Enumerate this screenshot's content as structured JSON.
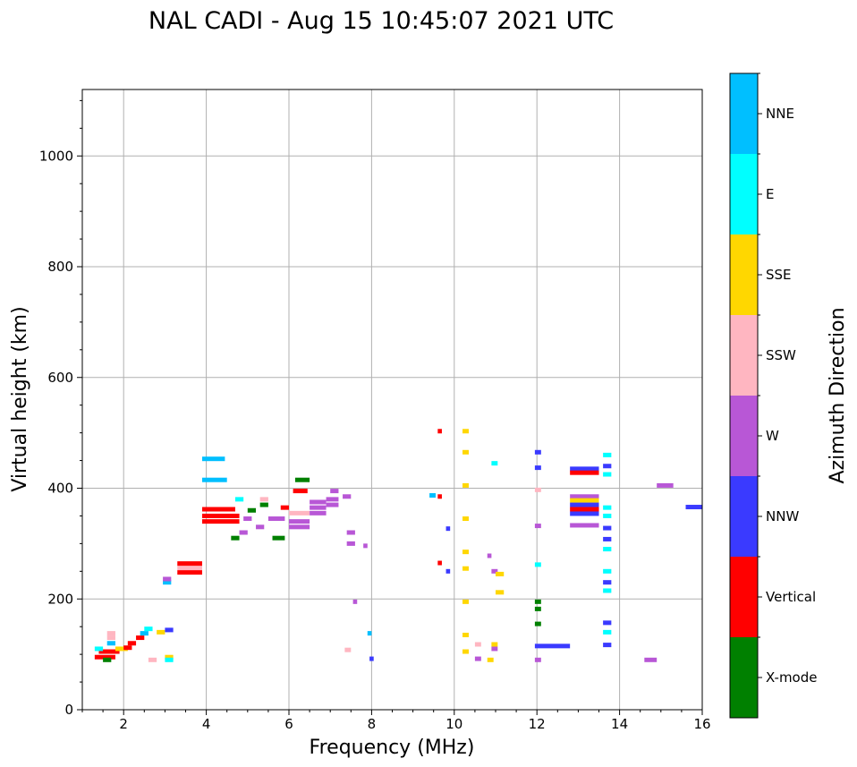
{
  "chart_data": {
    "type": "scatter",
    "title": "NAL CADI - Aug 15 10:45:07 2021 UTC",
    "xlabel": "Frequency (MHz)",
    "ylabel": "Virtual height (km)",
    "xlim": [
      1,
      16
    ],
    "ylim": [
      0,
      1120
    ],
    "xticks": [
      2,
      4,
      6,
      8,
      10,
      12,
      14,
      16
    ],
    "yticks": [
      0,
      200,
      400,
      600,
      800,
      1000
    ],
    "grid": true,
    "colorbar": {
      "label": "Azimuth Direction",
      "categories": [
        {
          "name": "X-mode",
          "color": "#008000"
        },
        {
          "name": "Vertical",
          "color": "#ff0000"
        },
        {
          "name": "NNW",
          "color": "#3a3aff"
        },
        {
          "name": "W",
          "color": "#b857d6"
        },
        {
          "name": "SSW",
          "color": "#ffb6c1"
        },
        {
          "name": "SSE",
          "color": "#ffd700"
        },
        {
          "name": "E",
          "color": "#00ffff"
        },
        {
          "name": "NNE",
          "color": "#00bfff"
        }
      ]
    },
    "segments": [
      {
        "x0": 1.3,
        "x1": 1.8,
        "y": 95,
        "c": "Vertical"
      },
      {
        "x0": 1.4,
        "x1": 1.9,
        "y": 105,
        "c": "Vertical"
      },
      {
        "x0": 1.5,
        "x1": 1.7,
        "y": 90,
        "c": "X-mode"
      },
      {
        "x0": 1.3,
        "x1": 1.5,
        "y": 110,
        "c": "E"
      },
      {
        "x0": 1.6,
        "x1": 1.8,
        "y": 120,
        "c": "NNE"
      },
      {
        "x0": 1.6,
        "x1": 1.8,
        "y": 130,
        "c": "SSW"
      },
      {
        "x0": 1.6,
        "x1": 1.8,
        "y": 138,
        "c": "SSW"
      },
      {
        "x0": 1.8,
        "x1": 2.1,
        "y": 110,
        "c": "SSE"
      },
      {
        "x0": 2.0,
        "x1": 2.2,
        "y": 112,
        "c": "Vertical"
      },
      {
        "x0": 2.1,
        "x1": 2.3,
        "y": 120,
        "c": "Vertical"
      },
      {
        "x0": 2.3,
        "x1": 2.5,
        "y": 130,
        "c": "Vertical"
      },
      {
        "x0": 2.4,
        "x1": 2.6,
        "y": 138,
        "c": "NNE"
      },
      {
        "x0": 2.5,
        "x1": 2.7,
        "y": 146,
        "c": "E"
      },
      {
        "x0": 2.6,
        "x1": 2.8,
        "y": 90,
        "c": "SSW"
      },
      {
        "x0": 2.8,
        "x1": 3.0,
        "y": 140,
        "c": "SSE"
      },
      {
        "x0": 3.0,
        "x1": 3.2,
        "y": 144,
        "c": "NNW"
      },
      {
        "x0": 3.0,
        "x1": 3.2,
        "y": 95,
        "c": "SSE"
      },
      {
        "x0": 3.0,
        "x1": 3.2,
        "y": 90,
        "c": "E"
      },
      {
        "x0": 2.95,
        "x1": 3.15,
        "y": 230,
        "c": "NNE"
      },
      {
        "x0": 2.95,
        "x1": 3.15,
        "y": 236,
        "c": "W"
      },
      {
        "x0": 3.3,
        "x1": 3.9,
        "y": 248,
        "c": "Vertical"
      },
      {
        "x0": 3.3,
        "x1": 3.9,
        "y": 256,
        "c": "SSW"
      },
      {
        "x0": 3.3,
        "x1": 3.9,
        "y": 264,
        "c": "Vertical"
      },
      {
        "x0": 3.9,
        "x1": 4.45,
        "y": 453,
        "c": "NNE"
      },
      {
        "x0": 3.9,
        "x1": 4.5,
        "y": 415,
        "c": "NNE"
      },
      {
        "x0": 3.9,
        "x1": 4.8,
        "y": 340,
        "c": "Vertical"
      },
      {
        "x0": 3.9,
        "x1": 4.8,
        "y": 350,
        "c": "Vertical"
      },
      {
        "x0": 3.9,
        "x1": 4.7,
        "y": 362,
        "c": "Vertical"
      },
      {
        "x0": 4.6,
        "x1": 4.8,
        "y": 310,
        "c": "X-mode"
      },
      {
        "x0": 4.7,
        "x1": 4.9,
        "y": 380,
        "c": "E"
      },
      {
        "x0": 4.8,
        "x1": 5.0,
        "y": 320,
        "c": "W"
      },
      {
        "x0": 4.9,
        "x1": 5.1,
        "y": 345,
        "c": "W"
      },
      {
        "x0": 5.0,
        "x1": 5.2,
        "y": 360,
        "c": "X-mode"
      },
      {
        "x0": 5.2,
        "x1": 5.4,
        "y": 330,
        "c": "W"
      },
      {
        "x0": 5.3,
        "x1": 5.5,
        "y": 370,
        "c": "X-mode"
      },
      {
        "x0": 5.3,
        "x1": 5.5,
        "y": 380,
        "c": "SSW"
      },
      {
        "x0": 5.5,
        "x1": 5.9,
        "y": 345,
        "c": "W"
      },
      {
        "x0": 5.6,
        "x1": 5.9,
        "y": 310,
        "c": "X-mode"
      },
      {
        "x0": 5.8,
        "x1": 6.0,
        "y": 365,
        "c": "Vertical"
      },
      {
        "x0": 6.0,
        "x1": 6.5,
        "y": 330,
        "c": "W"
      },
      {
        "x0": 6.0,
        "x1": 6.5,
        "y": 340,
        "c": "W"
      },
      {
        "x0": 6.0,
        "x1": 6.5,
        "y": 355,
        "c": "SSW"
      },
      {
        "x0": 6.1,
        "x1": 6.45,
        "y": 395,
        "c": "Vertical"
      },
      {
        "x0": 6.15,
        "x1": 6.5,
        "y": 415,
        "c": "X-mode"
      },
      {
        "x0": 6.5,
        "x1": 6.9,
        "y": 365,
        "c": "W"
      },
      {
        "x0": 6.5,
        "x1": 6.9,
        "y": 375,
        "c": "W"
      },
      {
        "x0": 6.5,
        "x1": 6.9,
        "y": 355,
        "c": "W"
      },
      {
        "x0": 6.9,
        "x1": 7.2,
        "y": 370,
        "c": "W"
      },
      {
        "x0": 6.9,
        "x1": 7.2,
        "y": 380,
        "c": "W"
      },
      {
        "x0": 7.0,
        "x1": 7.2,
        "y": 395,
        "c": "W"
      },
      {
        "x0": 7.3,
        "x1": 7.5,
        "y": 385,
        "c": "W"
      },
      {
        "x0": 7.4,
        "x1": 7.6,
        "y": 320,
        "c": "W"
      },
      {
        "x0": 7.4,
        "x1": 7.6,
        "y": 300,
        "c": "W"
      },
      {
        "x0": 7.55,
        "x1": 7.65,
        "y": 195,
        "c": "W"
      },
      {
        "x0": 7.35,
        "x1": 7.5,
        "y": 108,
        "c": "SSW"
      },
      {
        "x0": 7.8,
        "x1": 7.9,
        "y": 296,
        "c": "W"
      },
      {
        "x0": 7.9,
        "x1": 8.0,
        "y": 138,
        "c": "NNE"
      },
      {
        "x0": 7.95,
        "x1": 8.05,
        "y": 92,
        "c": "NNW"
      },
      {
        "x0": 9.4,
        "x1": 9.55,
        "y": 387,
        "c": "NNE"
      },
      {
        "x0": 9.6,
        "x1": 9.7,
        "y": 503,
        "c": "Vertical"
      },
      {
        "x0": 9.6,
        "x1": 9.7,
        "y": 385,
        "c": "Vertical"
      },
      {
        "x0": 9.6,
        "x1": 9.7,
        "y": 265,
        "c": "Vertical"
      },
      {
        "x0": 9.8,
        "x1": 9.9,
        "y": 250,
        "c": "NNW"
      },
      {
        "x0": 9.8,
        "x1": 9.9,
        "y": 327,
        "c": "NNW"
      },
      {
        "x0": 10.2,
        "x1": 10.35,
        "y": 503,
        "c": "SSE"
      },
      {
        "x0": 10.2,
        "x1": 10.35,
        "y": 465,
        "c": "SSE"
      },
      {
        "x0": 10.2,
        "x1": 10.35,
        "y": 405,
        "c": "SSE"
      },
      {
        "x0": 10.2,
        "x1": 10.35,
        "y": 345,
        "c": "SSE"
      },
      {
        "x0": 10.2,
        "x1": 10.35,
        "y": 285,
        "c": "SSE"
      },
      {
        "x0": 10.2,
        "x1": 10.35,
        "y": 255,
        "c": "SSE"
      },
      {
        "x0": 10.2,
        "x1": 10.35,
        "y": 195,
        "c": "SSE"
      },
      {
        "x0": 10.2,
        "x1": 10.35,
        "y": 135,
        "c": "SSE"
      },
      {
        "x0": 10.2,
        "x1": 10.35,
        "y": 105,
        "c": "SSE"
      },
      {
        "x0": 10.5,
        "x1": 10.65,
        "y": 92,
        "c": "W"
      },
      {
        "x0": 10.5,
        "x1": 10.65,
        "y": 118,
        "c": "SSW"
      },
      {
        "x0": 10.8,
        "x1": 10.9,
        "y": 278,
        "c": "W"
      },
      {
        "x0": 10.8,
        "x1": 10.95,
        "y": 90,
        "c": "SSE"
      },
      {
        "x0": 10.9,
        "x1": 11.05,
        "y": 445,
        "c": "E"
      },
      {
        "x0": 10.9,
        "x1": 11.05,
        "y": 250,
        "c": "W"
      },
      {
        "x0": 10.9,
        "x1": 11.05,
        "y": 110,
        "c": "W"
      },
      {
        "x0": 10.9,
        "x1": 11.05,
        "y": 118,
        "c": "SSE"
      },
      {
        "x0": 11.0,
        "x1": 11.2,
        "y": 245,
        "c": "SSE"
      },
      {
        "x0": 11.0,
        "x1": 11.2,
        "y": 212,
        "c": "SSE"
      },
      {
        "x0": 11.95,
        "x1": 12.1,
        "y": 465,
        "c": "NNW"
      },
      {
        "x0": 11.95,
        "x1": 12.1,
        "y": 437,
        "c": "NNW"
      },
      {
        "x0": 11.95,
        "x1": 12.1,
        "y": 397,
        "c": "SSW"
      },
      {
        "x0": 11.95,
        "x1": 12.1,
        "y": 332,
        "c": "W"
      },
      {
        "x0": 11.95,
        "x1": 12.1,
        "y": 262,
        "c": "E"
      },
      {
        "x0": 11.95,
        "x1": 12.1,
        "y": 195,
        "c": "X-mode"
      },
      {
        "x0": 11.95,
        "x1": 12.1,
        "y": 182,
        "c": "X-mode"
      },
      {
        "x0": 11.95,
        "x1": 12.1,
        "y": 155,
        "c": "X-mode"
      },
      {
        "x0": 11.95,
        "x1": 12.1,
        "y": 90,
        "c": "W"
      },
      {
        "x0": 11.95,
        "x1": 12.8,
        "y": 115,
        "c": "NNW"
      },
      {
        "x0": 12.8,
        "x1": 13.5,
        "y": 435,
        "c": "NNW"
      },
      {
        "x0": 12.8,
        "x1": 13.5,
        "y": 428,
        "c": "Vertical"
      },
      {
        "x0": 12.8,
        "x1": 13.5,
        "y": 385,
        "c": "W"
      },
      {
        "x0": 12.8,
        "x1": 13.5,
        "y": 378,
        "c": "SSE"
      },
      {
        "x0": 12.8,
        "x1": 13.5,
        "y": 370,
        "c": "NNW"
      },
      {
        "x0": 12.8,
        "x1": 13.5,
        "y": 362,
        "c": "Vertical"
      },
      {
        "x0": 12.8,
        "x1": 13.5,
        "y": 354,
        "c": "NNW"
      },
      {
        "x0": 12.8,
        "x1": 13.5,
        "y": 333,
        "c": "W"
      },
      {
        "x0": 13.6,
        "x1": 13.8,
        "y": 460,
        "c": "E"
      },
      {
        "x0": 13.6,
        "x1": 13.8,
        "y": 440,
        "c": "NNW"
      },
      {
        "x0": 13.6,
        "x1": 13.8,
        "y": 425,
        "c": "E"
      },
      {
        "x0": 13.6,
        "x1": 13.8,
        "y": 365,
        "c": "E"
      },
      {
        "x0": 13.6,
        "x1": 13.8,
        "y": 350,
        "c": "E"
      },
      {
        "x0": 13.6,
        "x1": 13.8,
        "y": 328,
        "c": "NNW"
      },
      {
        "x0": 13.6,
        "x1": 13.8,
        "y": 308,
        "c": "NNW"
      },
      {
        "x0": 13.6,
        "x1": 13.8,
        "y": 290,
        "c": "E"
      },
      {
        "x0": 13.6,
        "x1": 13.8,
        "y": 250,
        "c": "E"
      },
      {
        "x0": 13.6,
        "x1": 13.8,
        "y": 230,
        "c": "NNW"
      },
      {
        "x0": 13.6,
        "x1": 13.8,
        "y": 215,
        "c": "E"
      },
      {
        "x0": 13.6,
        "x1": 13.8,
        "y": 157,
        "c": "NNW"
      },
      {
        "x0": 13.6,
        "x1": 13.8,
        "y": 140,
        "c": "E"
      },
      {
        "x0": 13.6,
        "x1": 13.8,
        "y": 117,
        "c": "NNW"
      },
      {
        "x0": 14.6,
        "x1": 14.9,
        "y": 90,
        "c": "W"
      },
      {
        "x0": 14.9,
        "x1": 15.3,
        "y": 405,
        "c": "W"
      },
      {
        "x0": 15.6,
        "x1": 16.0,
        "y": 366,
        "c": "NNW"
      }
    ]
  }
}
